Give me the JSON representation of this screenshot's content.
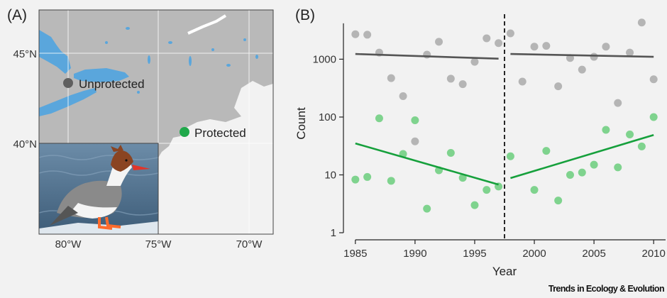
{
  "panel_a": {
    "label": "(A)",
    "lat_labels": [
      "45°N",
      "40°N"
    ],
    "lon_labels": [
      "80°W",
      "75°W",
      "70°W"
    ],
    "sites": [
      {
        "name": "Unprotected",
        "color": "#5f5f5f"
      },
      {
        "name": "Protected",
        "color": "#1fa84a"
      }
    ],
    "colors": {
      "land": "#b9b9b9",
      "water": "#5aa6dc",
      "sea": "#f2f2f2",
      "grid": "#ffffff"
    },
    "inset_photo": "common-merganser-photo"
  },
  "panel_b": {
    "label": "(B)"
  },
  "chart_data": {
    "type": "scatter",
    "xlabel": "Year",
    "ylabel": "Count",
    "x_ticks": [
      1985,
      1990,
      1995,
      2000,
      2005,
      2010
    ],
    "y_ticks": [
      1,
      10,
      100,
      1000
    ],
    "y_tick_labels": [
      "1",
      "10",
      "100",
      "1000"
    ],
    "xlim": [
      1984,
      2011
    ],
    "ylim": [
      1,
      6000
    ],
    "y_scale": "log",
    "grid": false,
    "break_year": 1997.5,
    "series": [
      {
        "color_points": "#b5b5b5",
        "color_line": "#555555",
        "points": [
          [
            1985,
            2700
          ],
          [
            1986,
            2650
          ],
          [
            1987,
            1300
          ],
          [
            1988,
            470
          ],
          [
            1989,
            230
          ],
          [
            1990,
            38
          ],
          [
            1991,
            1200
          ],
          [
            1992,
            2000
          ],
          [
            1993,
            460
          ],
          [
            1994,
            370
          ],
          [
            1995,
            900
          ],
          [
            1996,
            2300
          ],
          [
            1997,
            1900
          ],
          [
            1998,
            2800
          ],
          [
            1999,
            410
          ],
          [
            2000,
            1650
          ],
          [
            2001,
            1700
          ],
          [
            2002,
            340
          ],
          [
            2003,
            1050
          ],
          [
            2004,
            660
          ],
          [
            2005,
            1100
          ],
          [
            2006,
            1650
          ],
          [
            2007,
            175
          ],
          [
            2008,
            1300
          ],
          [
            2009,
            4300
          ],
          [
            2010,
            450
          ]
        ],
        "trend": [
          [
            [
              1985,
              1230
            ],
            [
              1997,
              1020
            ]
          ],
          [
            [
              1998,
              1230
            ],
            [
              2010,
              1100
            ]
          ]
        ]
      },
      {
        "color_points": "#7fd38e",
        "color_line": "#16a03c",
        "points": [
          [
            1985,
            8.3
          ],
          [
            1986,
            9.2
          ],
          [
            1987,
            95
          ],
          [
            1988,
            7.9
          ],
          [
            1989,
            23
          ],
          [
            1990,
            88
          ],
          [
            1991,
            2.6
          ],
          [
            1992,
            12
          ],
          [
            1993,
            24
          ],
          [
            1994,
            8.9
          ],
          [
            1995,
            3.0
          ],
          [
            1996,
            5.5
          ],
          [
            1997,
            6.3
          ],
          [
            1998,
            21
          ],
          [
            2000,
            5.5
          ],
          [
            2001,
            26
          ],
          [
            2002,
            3.6
          ],
          [
            2003,
            10
          ],
          [
            2004,
            11
          ],
          [
            2005,
            15
          ],
          [
            2006,
            60
          ],
          [
            2007,
            13.5
          ],
          [
            2008,
            50
          ],
          [
            2009,
            31
          ],
          [
            2010,
            100
          ]
        ],
        "trend": [
          [
            [
              1985,
              35
            ],
            [
              1997,
              6.8
            ]
          ],
          [
            [
              1998,
              8.8
            ],
            [
              2010,
              49
            ]
          ]
        ]
      }
    ]
  },
  "source": "Trends in Ecology & Evolution"
}
